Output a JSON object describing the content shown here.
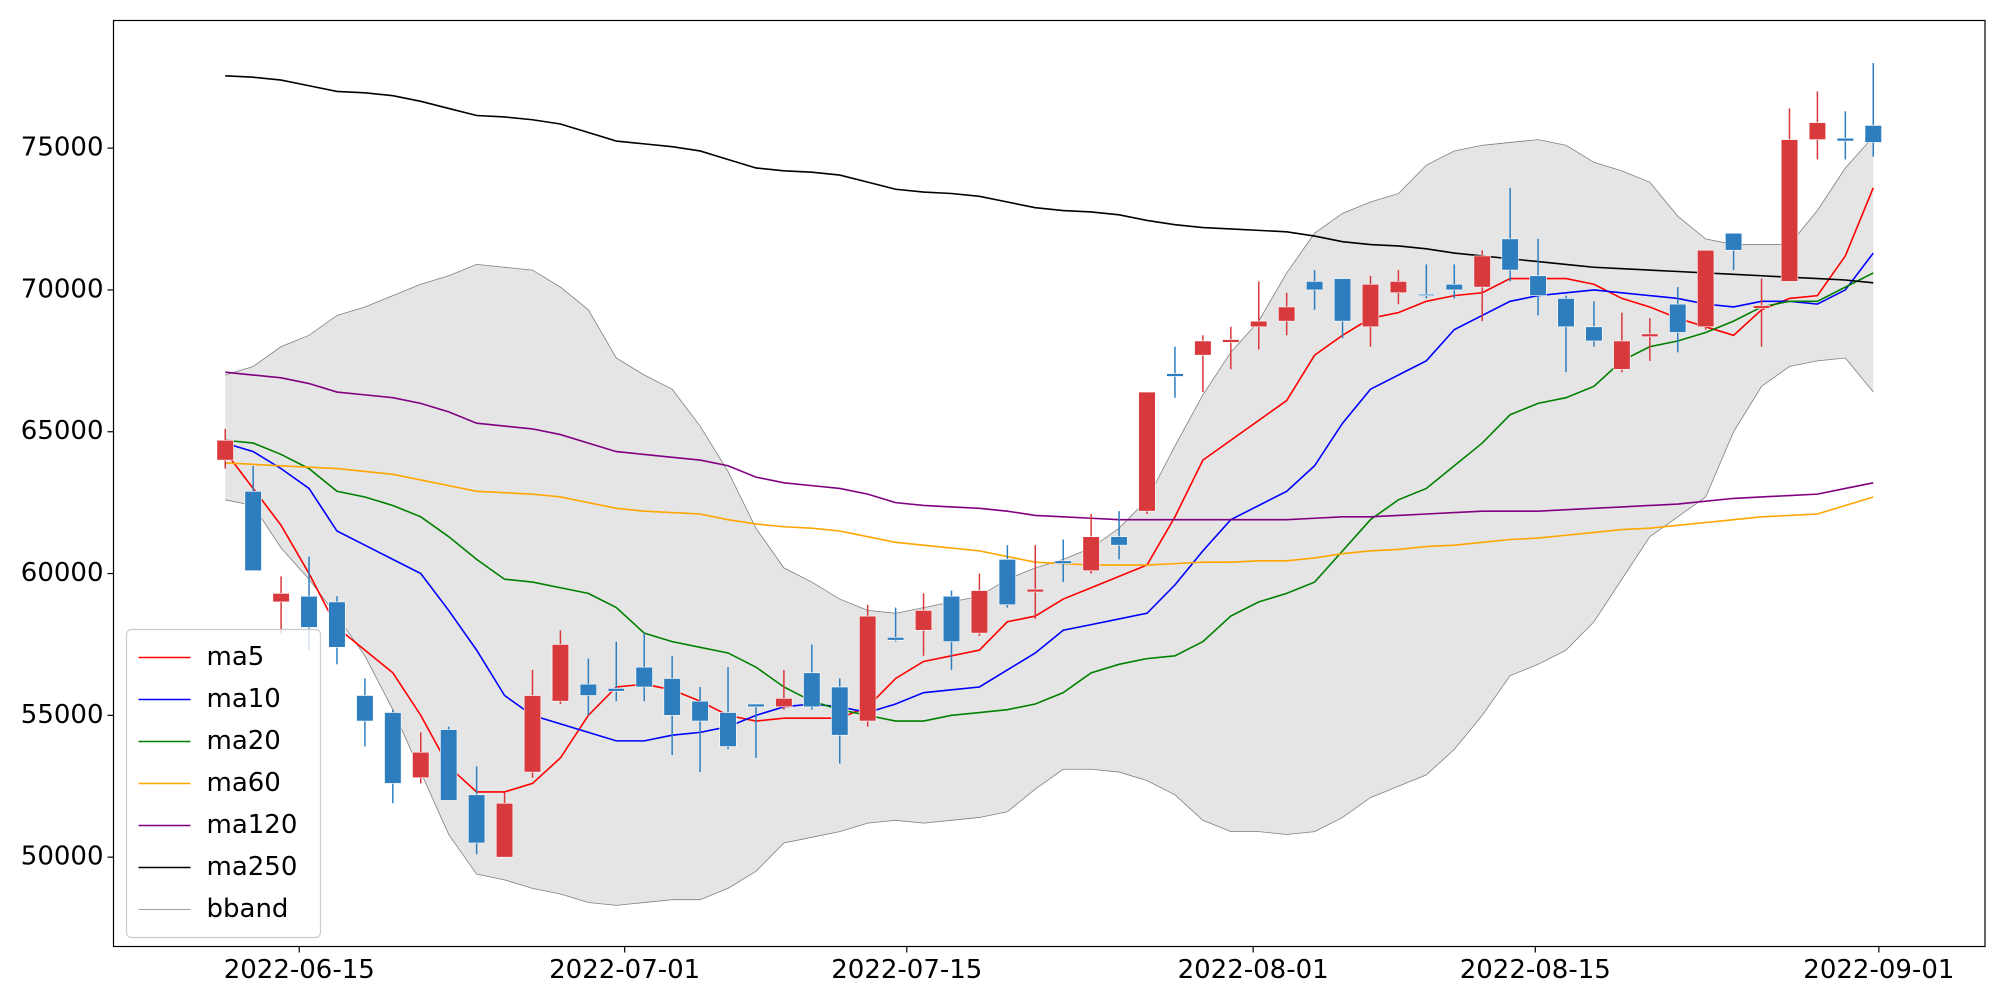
{
  "chart_data": {
    "type": "candlestick",
    "up_color": "#d8393c",
    "down_color": "#2e7ebf",
    "open": [
      64000,
      62900,
      59000,
      59200,
      59000,
      55700,
      55100,
      52800,
      54500,
      52200,
      50000,
      53000,
      55500,
      56100,
      55950,
      56700,
      56300,
      55500,
      55100,
      55400,
      55300,
      56500,
      56000,
      54800,
      57750,
      58000,
      59200,
      57900,
      60500,
      59350,
      60450,
      60100,
      61300,
      62200,
      67050,
      67700,
      68150,
      68700,
      68900,
      70300,
      70400,
      68700,
      69900,
      69850,
      70200,
      70100,
      71800,
      70500,
      69700,
      68700,
      67200,
      68350,
      69500,
      68700,
      72000,
      69350,
      70300,
      75300,
      75350,
      75800
    ],
    "high": [
      65100,
      63800,
      59900,
      60600,
      59200,
      56300,
      55200,
      54400,
      54600,
      53200,
      52300,
      56600,
      58000,
      57000,
      57600,
      57900,
      57100,
      56000,
      56700,
      55400,
      56600,
      57500,
      56300,
      58900,
      58800,
      59300,
      59400,
      60000,
      61000,
      61000,
      61200,
      62100,
      62200,
      66400,
      68000,
      68400,
      68700,
      70300,
      69900,
      70700,
      70400,
      70500,
      70700,
      70900,
      70900,
      71400,
      73600,
      71800,
      69800,
      69600,
      69200,
      69000,
      70100,
      71400,
      72000,
      70400,
      76400,
      77000,
      76300,
      78000
    ],
    "low": [
      63700,
      60100,
      57900,
      57300,
      56800,
      53900,
      51900,
      52600,
      52000,
      50100,
      50000,
      52800,
      55400,
      55000,
      55500,
      55500,
      53600,
      53000,
      53800,
      53500,
      55200,
      55200,
      53300,
      54600,
      57600,
      57100,
      56600,
      57800,
      58800,
      58400,
      59700,
      60000,
      60500,
      62100,
      66200,
      66400,
      67200,
      67900,
      68400,
      69300,
      68300,
      68000,
      69500,
      69700,
      69700,
      68900,
      70300,
      69100,
      67100,
      68000,
      67100,
      67500,
      67800,
      68600,
      70700,
      68000,
      70300,
      74600,
      74600,
      74700
    ],
    "close": [
      64700,
      60100,
      59300,
      58100,
      57400,
      54800,
      52600,
      53700,
      52000,
      50500,
      51900,
      55700,
      57500,
      55700,
      55850,
      56000,
      55000,
      54800,
      53900,
      55300,
      55600,
      55300,
      54300,
      58500,
      57650,
      58700,
      57600,
      59400,
      58900,
      59450,
      60350,
      61300,
      61000,
      66400,
      66950,
      68200,
      68250,
      68900,
      69400,
      70000,
      68900,
      70200,
      70300,
      69800,
      70000,
      71200,
      70700,
      69800,
      68700,
      68200,
      68200,
      68450,
      68500,
      71400,
      71400,
      69450,
      75300,
      75900,
      75250,
      75200
    ],
    "lines": [
      {
        "name": "ma5",
        "color": "#ff0000",
        "values": [
          64300,
          63000,
          61700,
          60000,
          58100,
          57300,
          56500,
          55000,
          53200,
          52300,
          52300,
          52600,
          53500,
          55000,
          56000,
          56100,
          55900,
          55500,
          55000,
          54800,
          54900,
          54900,
          54900,
          55300,
          56300,
          56900,
          57100,
          57300,
          58300,
          58500,
          59100,
          59500,
          59900,
          60300,
          62000,
          64000,
          64700,
          65400,
          66100,
          67700,
          68400,
          69000,
          69200,
          69600,
          69800,
          69900,
          70400,
          70400,
          70400,
          70200,
          69700,
          69400,
          69000,
          68700,
          68400,
          69300,
          69700,
          69800,
          71200,
          73600
        ]
      },
      {
        "name": "ma10",
        "color": "#0000ff",
        "values": [
          64600,
          64300,
          63700,
          63000,
          61500,
          61000,
          60500,
          60000,
          58700,
          57300,
          55700,
          55000,
          54700,
          54400,
          54100,
          54100,
          54300,
          54400,
          54600,
          55000,
          55300,
          55400,
          55300,
          55100,
          55400,
          55800,
          55900,
          56000,
          56600,
          57200,
          58000,
          58200,
          58400,
          58600,
          59600,
          60800,
          61900,
          62400,
          62900,
          63800,
          65300,
          66500,
          67000,
          67500,
          68600,
          69100,
          69600,
          69800,
          69900,
          70000,
          69900,
          69800,
          69700,
          69500,
          69400,
          69600,
          69600,
          69500,
          70000,
          71300
        ]
      },
      {
        "name": "ma20",
        "color": "#008000",
        "values": [
          64700,
          64600,
          64200,
          63700,
          62900,
          62700,
          62400,
          62000,
          61300,
          60500,
          59800,
          59700,
          59500,
          59300,
          58800,
          57900,
          57600,
          57400,
          57200,
          56700,
          56000,
          55500,
          55200,
          55000,
          54800,
          54800,
          55000,
          55100,
          55200,
          55400,
          55800,
          56500,
          56800,
          57000,
          57100,
          57600,
          58500,
          59000,
          59300,
          59700,
          60800,
          61900,
          62600,
          63000,
          63800,
          64600,
          65600,
          66000,
          66200,
          66600,
          67500,
          68000,
          68200,
          68500,
          68900,
          69400,
          69600,
          69600,
          70100,
          70600
        ]
      },
      {
        "name": "ma60",
        "color": "#ffa500",
        "values": [
          63900,
          63850,
          63800,
          63750,
          63700,
          63600,
          63500,
          63300,
          63100,
          62900,
          62850,
          62800,
          62700,
          62500,
          62300,
          62200,
          62150,
          62100,
          61900,
          61750,
          61650,
          61600,
          61500,
          61300,
          61100,
          61000,
          60900,
          60800,
          60600,
          60400,
          60350,
          60300,
          60300,
          60300,
          60350,
          60400,
          60400,
          60450,
          60450,
          60550,
          60700,
          60800,
          60850,
          60950,
          61000,
          61100,
          61200,
          61250,
          61350,
          61450,
          61550,
          61600,
          61700,
          61800,
          61900,
          62000,
          62050,
          62100,
          62400,
          62700
        ]
      },
      {
        "name": "ma120",
        "color": "#800080",
        "values": [
          67100,
          67000,
          66900,
          66700,
          66400,
          66300,
          66200,
          66000,
          65700,
          65300,
          65200,
          65100,
          64900,
          64600,
          64300,
          64200,
          64100,
          64000,
          63800,
          63400,
          63200,
          63100,
          63000,
          62800,
          62500,
          62400,
          62350,
          62300,
          62200,
          62050,
          62000,
          61950,
          61900,
          61900,
          61900,
          61900,
          61900,
          61900,
          61900,
          61950,
          62000,
          62000,
          62050,
          62100,
          62150,
          62200,
          62200,
          62200,
          62250,
          62300,
          62350,
          62400,
          62450,
          62550,
          62650,
          62700,
          62750,
          62800,
          63000,
          63200
        ]
      },
      {
        "name": "ma250",
        "color": "#000000",
        "values": [
          77550,
          77500,
          77400,
          77200,
          77000,
          76950,
          76850,
          76650,
          76400,
          76150,
          76100,
          76000,
          75850,
          75550,
          75250,
          75150,
          75050,
          74900,
          74600,
          74300,
          74200,
          74150,
          74050,
          73800,
          73550,
          73450,
          73400,
          73300,
          73100,
          72900,
          72800,
          72750,
          72650,
          72450,
          72300,
          72200,
          72150,
          72100,
          72050,
          71900,
          71700,
          71600,
          71550,
          71450,
          71300,
          71200,
          71100,
          71000,
          70900,
          70800,
          70750,
          70700,
          70650,
          70600,
          70550,
          70500,
          70450,
          70400,
          70350,
          70250
        ]
      }
    ],
    "band": {
      "name": "bband",
      "color": "#808080",
      "fill": "#e5e5e5",
      "upper": [
        67000,
        67300,
        68000,
        68400,
        69100,
        69400,
        69800,
        70200,
        70500,
        70900,
        70800,
        70700,
        70100,
        69300,
        67600,
        67000,
        66500,
        65200,
        63600,
        61600,
        60200,
        59700,
        59100,
        58700,
        58600,
        58800,
        59000,
        59200,
        59800,
        60200,
        60500,
        60900,
        61600,
        62600,
        64500,
        66300,
        67800,
        68900,
        70600,
        72000,
        72700,
        73100,
        73400,
        74400,
        74900,
        75100,
        75200,
        75300,
        75100,
        74500,
        74200,
        73800,
        72600,
        71800,
        71600,
        71600,
        71600,
        72800,
        74300,
        75400
      ],
      "lower": [
        62600,
        62400,
        60900,
        59800,
        58500,
        57100,
        55200,
        53000,
        50800,
        49400,
        49200,
        48900,
        48700,
        48400,
        48300,
        48400,
        48500,
        48500,
        48900,
        49500,
        50500,
        50700,
        50900,
        51200,
        51300,
        51200,
        51300,
        51400,
        51600,
        52400,
        53100,
        53100,
        53000,
        52700,
        52200,
        51300,
        50900,
        50900,
        50800,
        50900,
        51400,
        52100,
        52500,
        52900,
        53800,
        55000,
        56400,
        56800,
        57300,
        58300,
        59800,
        61300,
        62000,
        62700,
        65000,
        66600,
        67300,
        67500,
        67600,
        66400
      ]
    },
    "xlim": [
      -4,
      63
    ],
    "xticks": [
      {
        "value": 2.65,
        "label": "2022-06-15"
      },
      {
        "value": 14.3,
        "label": "2022-07-01"
      },
      {
        "value": 24.4,
        "label": "2022-07-15"
      },
      {
        "value": 36.8,
        "label": "2022-08-01"
      },
      {
        "value": 46.9,
        "label": "2022-08-15"
      },
      {
        "value": 59.2,
        "label": "2022-09-01"
      }
    ],
    "ylim": [
      46850,
      79500
    ],
    "yticks": [
      50000,
      55000,
      60000,
      65000,
      70000,
      75000
    ],
    "legend": "lower left"
  }
}
